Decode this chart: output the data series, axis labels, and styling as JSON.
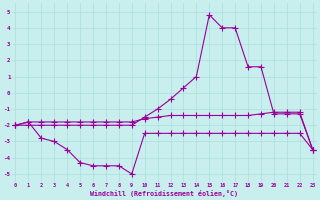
{
  "xlabel": "Windchill (Refroidissement éolien,°C)",
  "bg_color": "#c8eeee",
  "grid_color": "#aadddd",
  "line_color": "#990099",
  "xlim": [
    -0.3,
    23.3
  ],
  "ylim": [
    -5.5,
    5.5
  ],
  "yticks": [
    -5,
    -4,
    -3,
    -2,
    -1,
    0,
    1,
    2,
    3,
    4,
    5
  ],
  "xticks": [
    0,
    1,
    2,
    3,
    4,
    5,
    6,
    7,
    8,
    9,
    10,
    11,
    12,
    13,
    14,
    15,
    16,
    17,
    18,
    19,
    20,
    21,
    22,
    23
  ],
  "line1_x": [
    0,
    1,
    2,
    3,
    4,
    5,
    6,
    7,
    8,
    9,
    10,
    11,
    12,
    13,
    14,
    15,
    16,
    17,
    18,
    19,
    20,
    21,
    22,
    23
  ],
  "line1_y": [
    -2.0,
    -2.0,
    -2.0,
    -2.0,
    -2.0,
    -2.0,
    -2.0,
    -2.0,
    -2.0,
    -2.0,
    -1.5,
    -1.0,
    -0.4,
    0.3,
    1.0,
    4.8,
    4.0,
    4.0,
    1.6,
    1.6,
    -1.3,
    -1.3,
    -1.3,
    -3.5
  ],
  "line2_x": [
    0,
    1,
    2,
    3,
    4,
    5,
    6,
    7,
    8,
    9,
    10,
    11,
    12,
    13,
    14,
    15,
    16,
    17,
    18,
    19,
    20,
    21,
    22,
    23
  ],
  "line2_y": [
    -2.0,
    -1.8,
    -1.8,
    -1.8,
    -1.8,
    -1.8,
    -1.8,
    -1.8,
    -1.8,
    -1.8,
    -1.6,
    -1.5,
    -1.4,
    -1.4,
    -1.4,
    -1.4,
    -1.4,
    -1.4,
    -1.4,
    -1.3,
    -1.2,
    -1.2,
    -1.2,
    -3.5
  ],
  "line3_x": [
    0,
    1,
    2,
    3,
    4,
    5,
    6,
    7,
    8,
    9,
    10,
    11,
    12,
    13,
    14,
    15,
    16,
    17,
    18,
    19,
    20,
    21,
    22,
    23
  ],
  "line3_y": [
    -2.0,
    -1.8,
    -2.8,
    -3.0,
    -3.5,
    -4.3,
    -4.5,
    -4.5,
    -4.5,
    -5.0,
    -2.5,
    -2.5,
    -2.5,
    -2.5,
    -2.5,
    -2.5,
    -2.5,
    -2.5,
    -2.5,
    -2.5,
    -2.5,
    -2.5,
    -2.5,
    -3.5
  ]
}
